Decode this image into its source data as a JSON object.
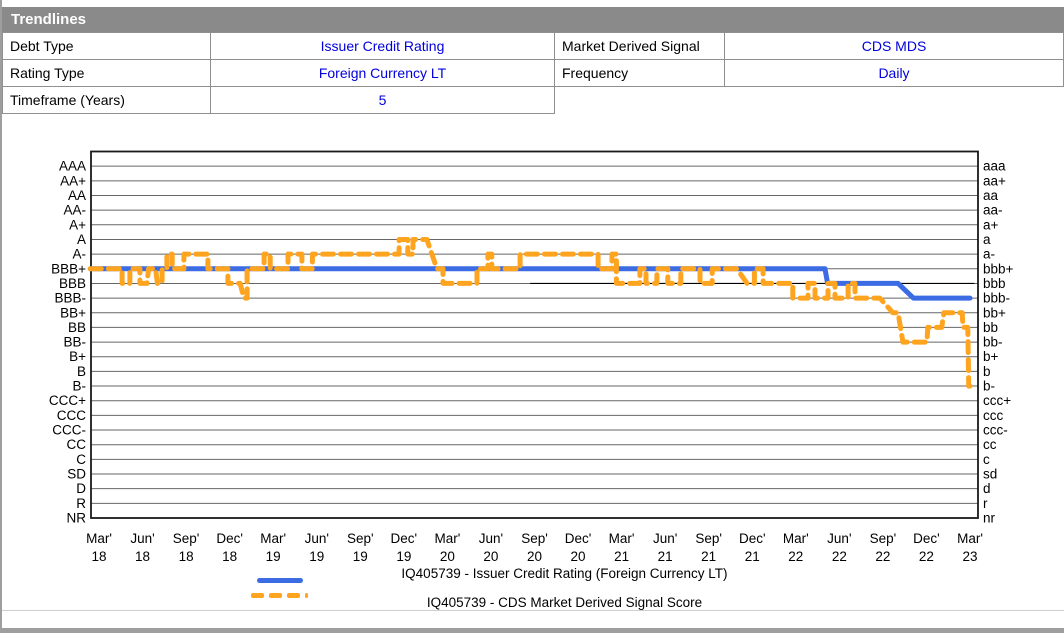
{
  "window": {
    "title": "Trendlines"
  },
  "form": {
    "fields": [
      {
        "label": "Debt Type",
        "value": "Issuer Credit Rating"
      },
      {
        "label": "Rating Type",
        "value": "Foreign Currency LT"
      },
      {
        "label": "Timeframe (Years)",
        "value": "5"
      },
      {
        "label": "Market Derived Signal",
        "value": "CDS MDS"
      },
      {
        "label": "Frequency",
        "value": "Daily"
      }
    ]
  },
  "colors": {
    "header_gray": "#8a8a8a",
    "value_blue": "#0000dd",
    "rating_line_blue": "#3b6ce4",
    "mds_line_orange": "#ffa41e",
    "reference_black": "#000000",
    "gridline_gray": "#666666"
  },
  "chart_data": {
    "type": "line",
    "title": "",
    "grid": true,
    "y_axis_left_labels": [
      "AAA",
      "AA+",
      "AA",
      "AA-",
      "A+",
      "A",
      "A-",
      "BBB+",
      "BBB",
      "BBB-",
      "BB+",
      "BB",
      "BB-",
      "B+",
      "B",
      "B-",
      "CCC+",
      "CCC",
      "CCC-",
      "CC",
      "C",
      "SD",
      "D",
      "R",
      "NR"
    ],
    "y_axis_right_labels": [
      "aaa",
      "aa+",
      "aa",
      "aa-",
      "a+",
      "a",
      "a-",
      "bbb+",
      "bbb",
      "bbb-",
      "bb+",
      "bb",
      "bb-",
      "b+",
      "b",
      "b-",
      "ccc+",
      "ccc",
      "ccc-",
      "cc",
      "c",
      "sd",
      "d",
      "r",
      "nr"
    ],
    "x_ticks": [
      {
        "month": "Mar'",
        "year": "18"
      },
      {
        "month": "Jun'",
        "year": "18"
      },
      {
        "month": "Sep'",
        "year": "18"
      },
      {
        "month": "Dec'",
        "year": "18"
      },
      {
        "month": "Mar'",
        "year": "19"
      },
      {
        "month": "Jun'",
        "year": "19"
      },
      {
        "month": "Sep'",
        "year": "19"
      },
      {
        "month": "Dec'",
        "year": "19"
      },
      {
        "month": "Mar'",
        "year": "20"
      },
      {
        "month": "Jun'",
        "year": "20"
      },
      {
        "month": "Sep'",
        "year": "20"
      },
      {
        "month": "Dec'",
        "year": "20"
      },
      {
        "month": "Mar'",
        "year": "21"
      },
      {
        "month": "Jun'",
        "year": "21"
      },
      {
        "month": "Sep'",
        "year": "21"
      },
      {
        "month": "Dec'",
        "year": "21"
      },
      {
        "month": "Mar'",
        "year": "22"
      },
      {
        "month": "Jun'",
        "year": "22"
      },
      {
        "month": "Sep'",
        "year": "22"
      },
      {
        "month": "Dec'",
        "year": "22"
      },
      {
        "month": "Mar'",
        "year": "23"
      }
    ],
    "x_unit": "quarters_since_Mar_2018",
    "series": [
      {
        "name": "IQ405739 - Issuer Credit Rating (Foreign Currency LT)",
        "color": "#3b6ce4",
        "style": "solid",
        "points": [
          [
            -0.2,
            "BBB+"
          ],
          [
            16.67,
            "BBB+"
          ],
          [
            16.73,
            "BBB"
          ],
          [
            18.35,
            "BBB"
          ],
          [
            18.7,
            "BBB-"
          ],
          [
            20.0,
            "BBB-"
          ]
        ]
      },
      {
        "name": "IQ405739 - CDS Market Derived Signal Score",
        "color": "#ffa41e",
        "style": "dashed",
        "points": [
          [
            -0.2,
            "BBB+"
          ],
          [
            0.53,
            "BBB+"
          ],
          [
            0.53,
            "BBB"
          ],
          [
            0.71,
            "BBB"
          ],
          [
            0.71,
            "BBB+"
          ],
          [
            0.94,
            "BBB+"
          ],
          [
            0.94,
            "BBB"
          ],
          [
            1.1,
            "BBB"
          ],
          [
            1.14,
            "BBB+"
          ],
          [
            1.3,
            "BBB+"
          ],
          [
            1.34,
            "BBB"
          ],
          [
            1.45,
            "BBB"
          ],
          [
            1.45,
            "BBB+"
          ],
          [
            1.56,
            "BBB+"
          ],
          [
            1.56,
            "A-"
          ],
          [
            1.68,
            "A-"
          ],
          [
            1.68,
            "BBB+"
          ],
          [
            1.95,
            "BBB+"
          ],
          [
            1.95,
            "A-"
          ],
          [
            2.5,
            "A-"
          ],
          [
            2.5,
            "BBB+"
          ],
          [
            2.96,
            "BBB+"
          ],
          [
            2.96,
            "BBB"
          ],
          [
            3.24,
            "BBB"
          ],
          [
            3.33,
            "BBB-"
          ],
          [
            3.4,
            "BBB-"
          ],
          [
            3.4,
            "BBB+"
          ],
          [
            3.79,
            "BBB+"
          ],
          [
            3.79,
            "A-"
          ],
          [
            3.93,
            "A-"
          ],
          [
            3.93,
            "BBB+"
          ],
          [
            4.34,
            "BBB+"
          ],
          [
            4.34,
            "A-"
          ],
          [
            4.66,
            "A-"
          ],
          [
            4.66,
            "BBB+"
          ],
          [
            4.9,
            "BBB+"
          ],
          [
            4.9,
            "A-"
          ],
          [
            6.89,
            "A-"
          ],
          [
            6.89,
            "A"
          ],
          [
            7.09,
            "A"
          ],
          [
            7.09,
            "A-"
          ],
          [
            7.21,
            "A-"
          ],
          [
            7.21,
            "A"
          ],
          [
            7.53,
            "A"
          ],
          [
            7.76,
            "BBB+"
          ],
          [
            7.9,
            "BBB+"
          ],
          [
            7.9,
            "BBB"
          ],
          [
            8.68,
            "BBB"
          ],
          [
            8.68,
            "BBB+"
          ],
          [
            8.93,
            "BBB+"
          ],
          [
            8.93,
            "A-"
          ],
          [
            9.02,
            "A-"
          ],
          [
            9.02,
            "BBB+"
          ],
          [
            9.67,
            "BBB+"
          ],
          [
            9.67,
            "A-"
          ],
          [
            11.46,
            "A-"
          ],
          [
            11.46,
            "BBB+"
          ],
          [
            11.78,
            "BBB+"
          ],
          [
            11.78,
            "A-"
          ],
          [
            11.88,
            "A-"
          ],
          [
            11.88,
            "BBB"
          ],
          [
            12.42,
            "BBB"
          ],
          [
            12.42,
            "BBB+"
          ],
          [
            12.56,
            "BBB+"
          ],
          [
            12.56,
            "BBB"
          ],
          [
            12.81,
            "BBB"
          ],
          [
            12.81,
            "BBB+"
          ],
          [
            13.06,
            "BBB+"
          ],
          [
            13.06,
            "BBB"
          ],
          [
            13.36,
            "BBB"
          ],
          [
            13.36,
            "BBB+"
          ],
          [
            13.8,
            "BBB+"
          ],
          [
            13.8,
            "BBB"
          ],
          [
            14.08,
            "BBB"
          ],
          [
            14.08,
            "BBB+"
          ],
          [
            14.65,
            "BBB+"
          ],
          [
            14.88,
            "BBB"
          ],
          [
            15.05,
            "BBB"
          ],
          [
            15.05,
            "BBB+"
          ],
          [
            15.25,
            "BBB+"
          ],
          [
            15.25,
            "BBB"
          ],
          [
            15.93,
            "BBB"
          ],
          [
            15.93,
            "BBB-"
          ],
          [
            16.28,
            "BBB-"
          ],
          [
            16.28,
            "BBB"
          ],
          [
            16.44,
            "BBB"
          ],
          [
            16.44,
            "BBB-"
          ],
          [
            16.74,
            "BBB-"
          ],
          [
            16.74,
            "BBB"
          ],
          [
            16.9,
            "BBB"
          ],
          [
            16.9,
            "BBB-"
          ],
          [
            17.2,
            "BBB-"
          ],
          [
            17.2,
            "BBB"
          ],
          [
            17.36,
            "BBB"
          ],
          [
            17.36,
            "BBB-"
          ],
          [
            17.93,
            "BBB-"
          ],
          [
            18.23,
            "BB+"
          ],
          [
            18.35,
            "BB+"
          ],
          [
            18.46,
            "BB-"
          ],
          [
            19.01,
            "BB-"
          ],
          [
            19.03,
            "BB"
          ],
          [
            19.35,
            "BB"
          ],
          [
            19.4,
            "BB+"
          ],
          [
            19.82,
            "BB+"
          ],
          [
            19.84,
            "BB"
          ],
          [
            19.95,
            "BB"
          ],
          [
            19.97,
            "B-"
          ],
          [
            20.0,
            "B-"
          ]
        ]
      }
    ],
    "reference_line": {
      "rating": "BBB",
      "t_start": 9.9,
      "t_end": 20.1,
      "color": "#000000"
    },
    "legend_position": "bottom"
  }
}
